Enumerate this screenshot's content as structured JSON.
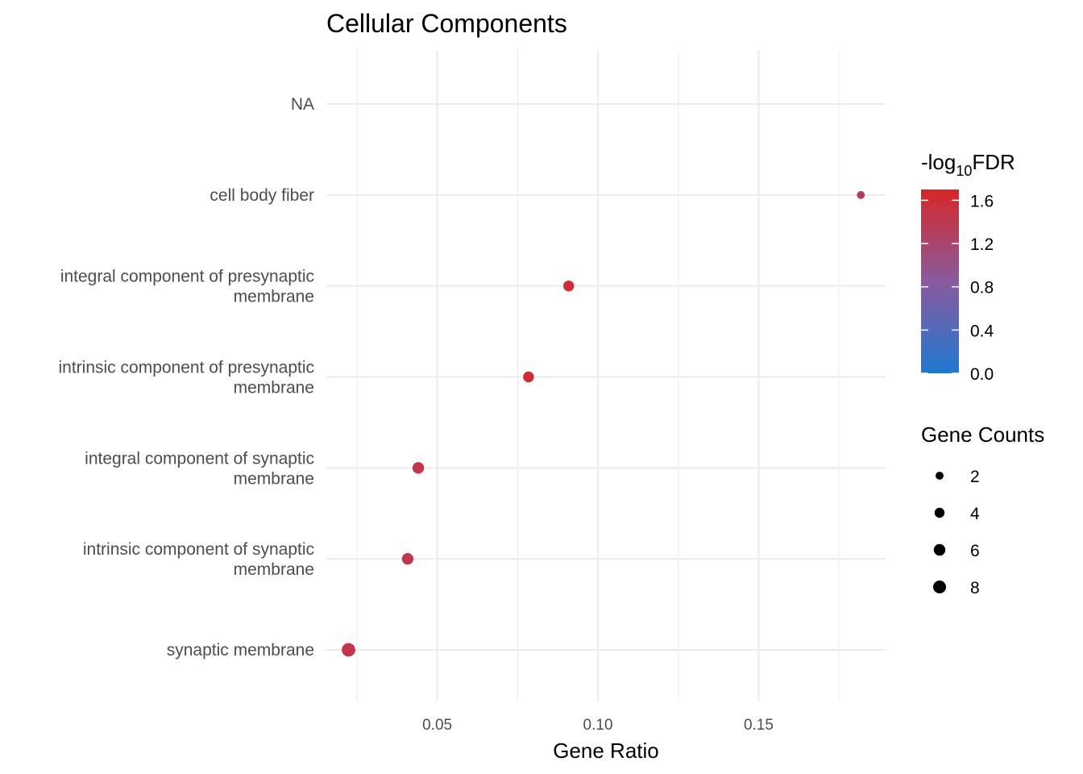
{
  "chart_data": {
    "type": "scatter",
    "title": "Cellular Components",
    "xlabel": "Gene Ratio",
    "ylabel": "",
    "xlim": [
      0.0155,
      0.1895
    ],
    "xticks": [
      0.05,
      0.1,
      0.15
    ],
    "xtick_labels": [
      "0.05",
      "0.10",
      "0.15"
    ],
    "grid": true,
    "categories": [
      "NA",
      "cell body fiber",
      "integral component of presynaptic membrane",
      "intrinsic component of presynaptic membrane",
      "integral component of synaptic membrane",
      "intrinsic component of synaptic membrane",
      "synaptic membrane"
    ],
    "category_lines": [
      [
        "NA"
      ],
      [
        "cell body fiber"
      ],
      [
        "integral component of presynaptic",
        "membrane"
      ],
      [
        "intrinsic component of presynaptic",
        "membrane"
      ],
      [
        "integral component of synaptic",
        "membrane"
      ],
      [
        "intrinsic component of synaptic",
        "membrane"
      ],
      [
        "synaptic membrane"
      ]
    ],
    "points": [
      {
        "category": "cell body fiber",
        "gene_ratio": 0.1818,
        "gene_count": 2,
        "neg_log10_fdr": 1.3
      },
      {
        "category": "integral component of presynaptic membrane",
        "gene_ratio": 0.0909,
        "gene_count": 5,
        "neg_log10_fdr": 1.62
      },
      {
        "category": "intrinsic component of presynaptic membrane",
        "gene_ratio": 0.0784,
        "gene_count": 5,
        "neg_log10_fdr": 1.62
      },
      {
        "category": "integral component of synaptic membrane",
        "gene_ratio": 0.0441,
        "gene_count": 6,
        "neg_log10_fdr": 1.45
      },
      {
        "category": "intrinsic component of synaptic membrane",
        "gene_ratio": 0.0408,
        "gene_count": 6,
        "neg_log10_fdr": 1.45
      },
      {
        "category": "synaptic membrane",
        "gene_ratio": 0.0224,
        "gene_count": 9,
        "neg_log10_fdr": 1.45
      }
    ],
    "legend_placement": "right",
    "color_legend": {
      "title_prefix": "-log",
      "title_sub": "10",
      "title_suffix": "FDR",
      "range": [
        0,
        1.7
      ],
      "ticks": [
        0.0,
        0.4,
        0.8,
        1.2,
        1.6
      ],
      "tick_labels": [
        "0.0",
        "0.4",
        "0.8",
        "1.2",
        "1.6"
      ],
      "low_color": "#1f78d1",
      "mid_color": "#8a5a9e",
      "high_color": "#d62728"
    },
    "size_legend": {
      "title": "Gene Counts",
      "values": [
        2,
        4,
        6,
        8
      ],
      "labels": [
        "2",
        "4",
        "6",
        "8"
      ],
      "color": "#000000"
    }
  }
}
